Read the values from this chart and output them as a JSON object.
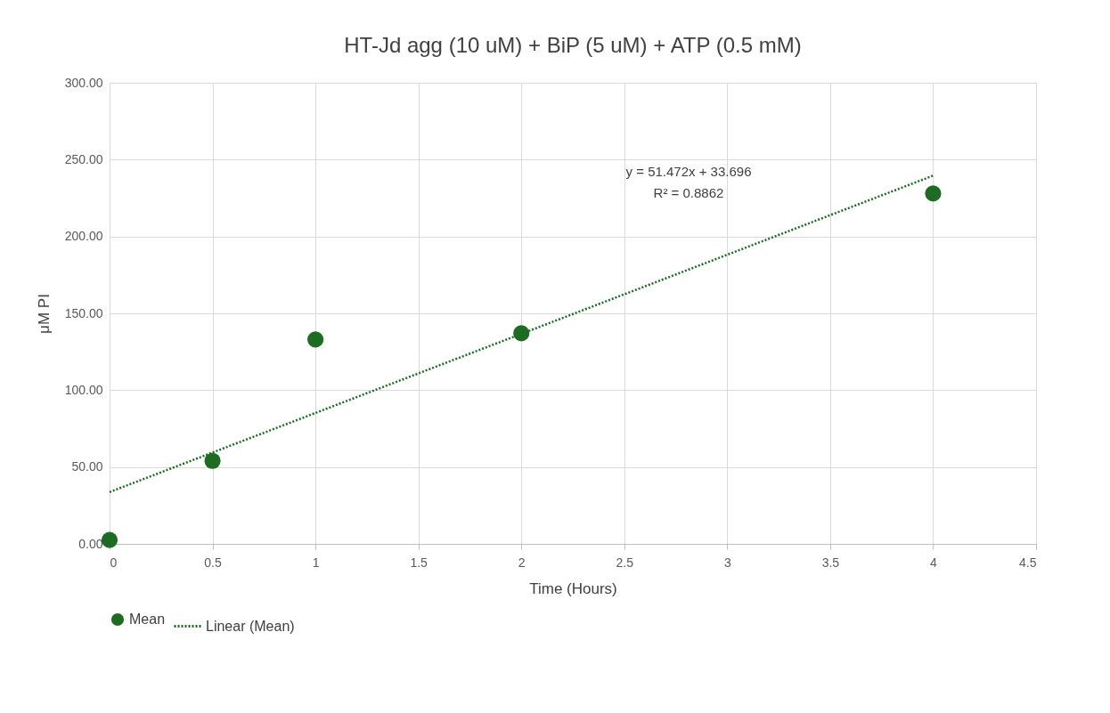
{
  "chart_data": {
    "type": "scatter",
    "title": "HT-Jd agg (10 uM) + BiP (5 uM) + ATP (0.5 mM)",
    "xlabel": "Time (Hours)",
    "ylabel": "μM PI",
    "x": [
      0,
      0.5,
      1,
      2,
      4
    ],
    "series": [
      {
        "name": "Mean",
        "marker": "circle",
        "color": "#1e6b23",
        "values": [
          2.5,
          54,
          133,
          137,
          228
        ]
      },
      {
        "name": "Linear (Mean)",
        "type": "line",
        "line_style": "dotted",
        "color": "#1e6b23",
        "x": [
          0,
          4
        ],
        "values": [
          33.7,
          239.6
        ]
      }
    ],
    "xlim": [
      0,
      4.5
    ],
    "xticks": [
      0,
      0.5,
      1,
      1.5,
      2,
      2.5,
      3,
      3.5,
      4,
      4.5
    ],
    "ylim": [
      0,
      300
    ],
    "yticks": [
      {
        "value": 0,
        "label": "0.00"
      },
      {
        "value": 50,
        "label": "50.00"
      },
      {
        "value": 100,
        "label": "100.00"
      },
      {
        "value": 150,
        "label": "150.00"
      },
      {
        "value": 200,
        "label": "200.00"
      },
      {
        "value": 250,
        "label": "250.00"
      },
      {
        "value": 300,
        "label": "300.00"
      }
    ],
    "grid": true,
    "legend": "bottom",
    "annotations": [
      "y = 51.472x + 33.696",
      "R² = 0.8862"
    ]
  }
}
